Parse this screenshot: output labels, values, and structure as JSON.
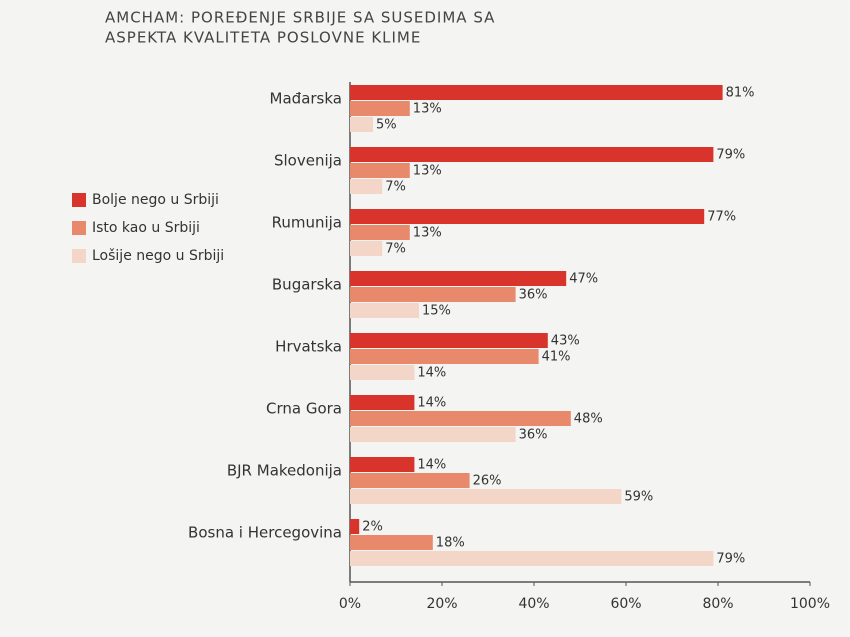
{
  "chart_data": {
    "type": "bar",
    "orientation": "horizontal",
    "title": [
      "AMCHAM: POREĐENJE SRBIJE SA SUSEDIMA SA",
      "ASPEKTA KVALITETA POSLOVNE KLIME"
    ],
    "categories": [
      "Mađarska",
      "Slovenija",
      "Rumunija",
      "Bugarska",
      "Hrvatska",
      "Crna Gora",
      "BJR Makedonija",
      "Bosna i Hercegovina"
    ],
    "series": [
      {
        "name": "Bolje nego u Srbiji",
        "color": "#d9342b",
        "values": [
          81,
          79,
          77,
          47,
          43,
          14,
          14,
          2
        ],
        "value_labels": [
          "81%",
          "79%",
          "77%",
          "47%",
          "43%",
          "14%",
          "14%",
          "2%"
        ]
      },
      {
        "name": "Isto kao u Srbiji",
        "color": "#e8896c",
        "values": [
          13,
          13,
          13,
          36,
          41,
          48,
          26,
          18
        ],
        "value_labels": [
          "13%",
          "13%",
          "13%",
          "36%",
          "41%",
          "48%",
          "26%",
          "18%"
        ]
      },
      {
        "name": "Lošije nego u Srbiji",
        "color": "#f4d6c9",
        "values": [
          5,
          7,
          7,
          15,
          14,
          36,
          59,
          79
        ],
        "value_labels": [
          "5%",
          "7%",
          "7%",
          "15%",
          "14%",
          "36%",
          "59%",
          "79%"
        ]
      }
    ],
    "xlim": [
      0,
      100
    ],
    "xticks": [
      {
        "value": 0,
        "label": "0%"
      },
      {
        "value": 20,
        "label": "20%"
      },
      {
        "value": 40,
        "label": "40%"
      },
      {
        "value": 60,
        "label": "60%"
      },
      {
        "value": 80,
        "label": "80%"
      },
      {
        "value": 100,
        "label": "100%"
      }
    ],
    "legend": "left"
  }
}
